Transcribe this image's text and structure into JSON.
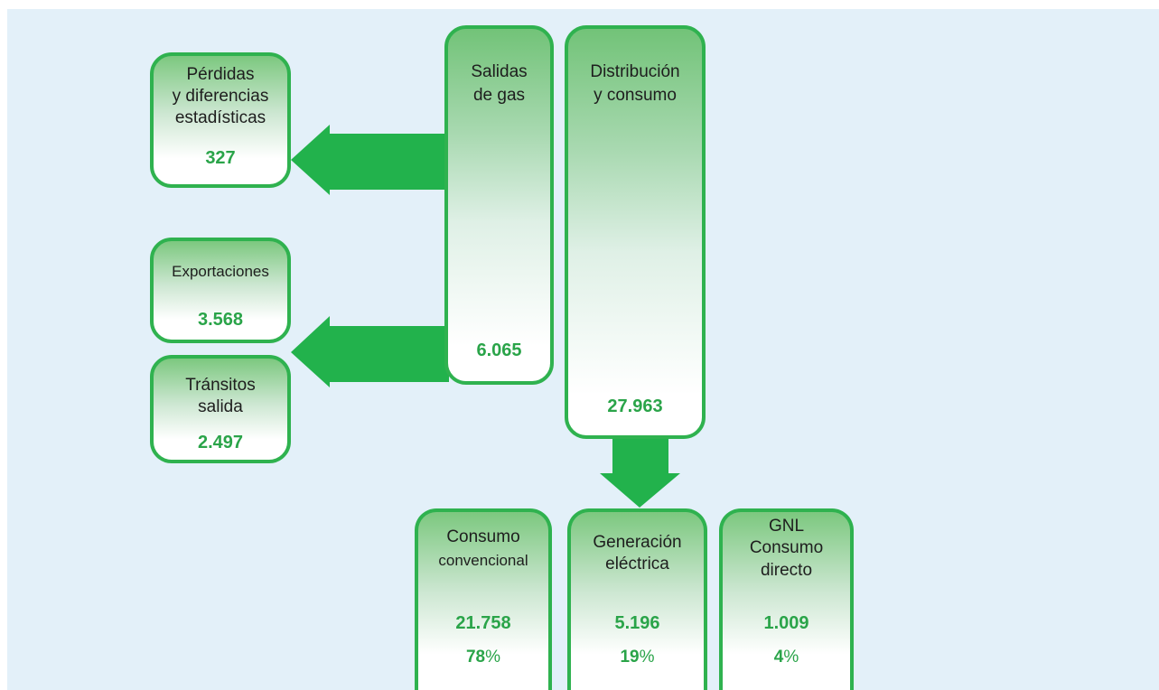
{
  "nodes": {
    "perdidas": {
      "label_line1": "Pérdidas",
      "label_line2": "y diferencias",
      "label_line3": "estadísticas",
      "value": "327"
    },
    "exportaciones": {
      "label": "Exportaciones",
      "value": "3.568"
    },
    "transitos": {
      "label_line1": "Tránsitos",
      "label_line2": "salida",
      "value": "2.497"
    },
    "salidas": {
      "label_line1": "Salidas",
      "label_line2": "de gas",
      "value": "6.065"
    },
    "distribucion": {
      "label_line1": "Distribución",
      "label_line2": "y consumo",
      "value": "27.963"
    },
    "convencional": {
      "label_line1": "Consumo",
      "label_line2": "convencional",
      "value": "21.758",
      "percent": "78",
      "percent_sign": "%"
    },
    "generacion": {
      "label_line1": "Generación",
      "label_line2": "eléctrica",
      "value": "5.196",
      "percent": "19",
      "percent_sign": "%"
    },
    "gnl": {
      "label_line1": "GNL",
      "label_line2": "Consumo",
      "label_line3": "directo",
      "value": "1.009",
      "percent": "4",
      "percent_sign": "%"
    }
  },
  "colors": {
    "accent": "#2fb24f",
    "background": "#e3f0f9",
    "value_text": "#2aa449"
  }
}
